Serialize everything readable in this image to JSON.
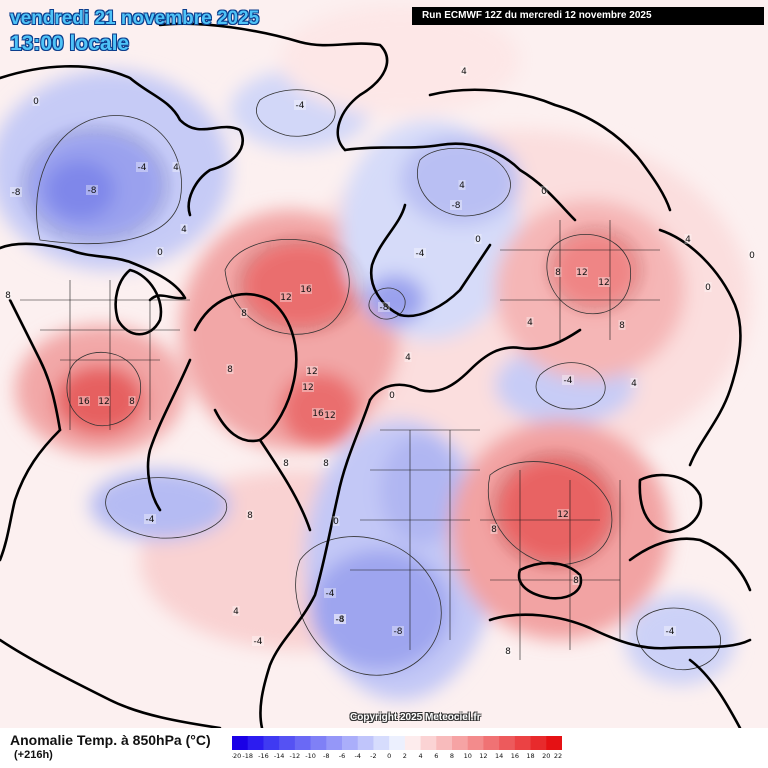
{
  "header": {
    "valid_date": "vendredi 21 novembre 2025",
    "valid_time": "13:00 locale",
    "run_info": "Run ECMWF 12Z du mercredi 12 novembre 2025"
  },
  "footer": {
    "variable": "Anomalie Temp. à 850hPa (°C)",
    "lead_time": "(+216h)",
    "copyright": "Copyright 2025 Meteociel.fr"
  },
  "legend": {
    "ticks": [
      "-20",
      "-18",
      "-16",
      "-14",
      "-12",
      "-10",
      "-8",
      "-6",
      "-4",
      "-2",
      "0",
      "2",
      "4",
      "6",
      "8",
      "10",
      "12",
      "14",
      "16",
      "18",
      "20",
      "22"
    ],
    "colors": [
      "#1a00e6",
      "#2c1cf0",
      "#3f3af2",
      "#5552f3",
      "#6a69f5",
      "#7f80f6",
      "#9597f8",
      "#aaaefa",
      "#c0c5fb",
      "#d6dcfd",
      "#ecf0fe",
      "#fdeced",
      "#fbd3d4",
      "#f8bbbc",
      "#f6a3a4",
      "#f38b8c",
      "#f07274",
      "#ed5a5c",
      "#eb4244",
      "#e82a2c",
      "#e51114"
    ]
  },
  "map": {
    "projection": "polar stereographic",
    "land_outline_color": "#000000",
    "contour_labels": [
      {
        "id": "l1",
        "v": "-8"
      },
      {
        "id": "l2",
        "v": "-8"
      },
      {
        "id": "l3",
        "v": "-4"
      },
      {
        "id": "l4",
        "v": "0"
      },
      {
        "id": "l5",
        "v": "0"
      },
      {
        "id": "l6",
        "v": "-4"
      },
      {
        "id": "l7",
        "v": "4"
      },
      {
        "id": "l8",
        "v": "4"
      },
      {
        "id": "l9",
        "v": "4"
      },
      {
        "id": "l10",
        "v": "8"
      },
      {
        "id": "l11",
        "v": "16"
      },
      {
        "id": "l12",
        "v": "12"
      },
      {
        "id": "l13",
        "v": "8"
      },
      {
        "id": "l14",
        "v": "16"
      },
      {
        "id": "l15",
        "v": "12"
      },
      {
        "id": "l16",
        "v": "8"
      },
      {
        "id": "l17",
        "v": "12"
      },
      {
        "id": "l18",
        "v": "12"
      },
      {
        "id": "l19",
        "v": "16"
      },
      {
        "id": "l20",
        "v": "12"
      },
      {
        "id": "l21",
        "v": "8"
      },
      {
        "id": "l22",
        "v": "8"
      },
      {
        "id": "l23",
        "v": "8"
      },
      {
        "id": "l24",
        "v": "-4"
      },
      {
        "id": "l25",
        "v": "-8"
      },
      {
        "id": "l26",
        "v": "-4"
      },
      {
        "id": "l27",
        "v": "-8"
      },
      {
        "id": "l28",
        "v": "0"
      },
      {
        "id": "l29",
        "v": "0"
      },
      {
        "id": "l30",
        "v": "8"
      },
      {
        "id": "l31",
        "v": "12"
      },
      {
        "id": "l32",
        "v": "12"
      },
      {
        "id": "l33",
        "v": "8"
      },
      {
        "id": "l34",
        "v": "4"
      },
      {
        "id": "l35",
        "v": "-4"
      },
      {
        "id": "l36",
        "v": "12"
      },
      {
        "id": "l37",
        "v": "8"
      },
      {
        "id": "l38",
        "v": "8"
      },
      {
        "id": "l39",
        "v": "-4"
      },
      {
        "id": "l40",
        "v": "-8"
      },
      {
        "id": "l41",
        "v": "-8"
      },
      {
        "id": "l42",
        "v": "-4"
      },
      {
        "id": "l43",
        "v": "4"
      },
      {
        "id": "l44",
        "v": "4"
      },
      {
        "id": "l45",
        "v": "0"
      },
      {
        "id": "l46",
        "v": "8"
      },
      {
        "id": "l47",
        "v": "-4"
      },
      {
        "id": "l48",
        "v": "-4"
      },
      {
        "id": "l49",
        "v": "0"
      },
      {
        "id": "l50",
        "v": "8"
      },
      {
        "id": "l51",
        "v": "0"
      },
      {
        "id": "l52",
        "v": "4"
      },
      {
        "id": "l53",
        "v": "4"
      },
      {
        "id": "l54",
        "v": "0"
      },
      {
        "id": "l55",
        "v": "4"
      }
    ]
  }
}
